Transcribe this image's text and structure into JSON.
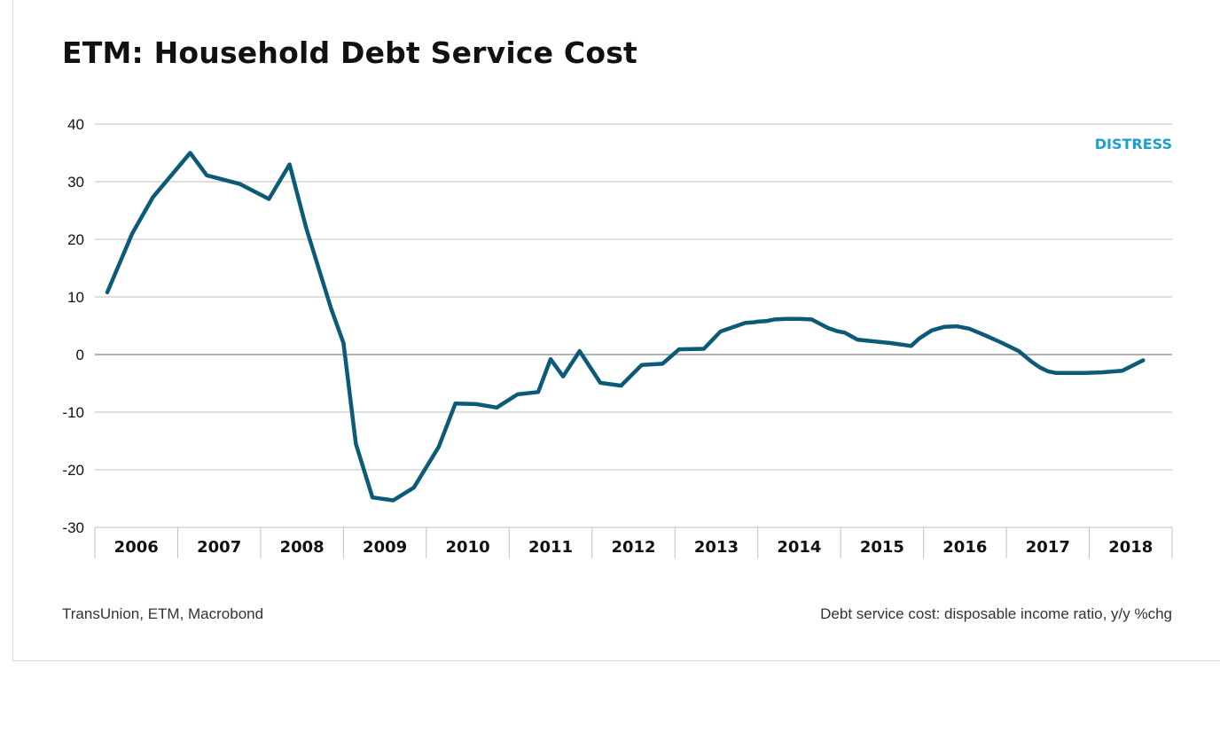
{
  "title": "ETM: Household Debt Service Cost",
  "source": "TransUnion, ETM, Macrobond",
  "note": "Debt service cost: disposable income ratio, y/y %chg",
  "colors": {
    "line": "#0b5a78",
    "annotation": "#1aa0cf",
    "grid": "#bfbfbf",
    "text": "#111111"
  },
  "chart_data": {
    "type": "line",
    "title": "ETM: Household Debt Service Cost",
    "xlabel": "",
    "ylabel": "",
    "ylim": [
      -30,
      40
    ],
    "yticks": [
      40,
      30,
      20,
      10,
      0,
      -10,
      -20,
      -30
    ],
    "xlim": [
      2006,
      2019
    ],
    "categories": [
      "2006",
      "2007",
      "2008",
      "2009",
      "2010",
      "2011",
      "2012",
      "2013",
      "2014",
      "2015",
      "2016",
      "2017",
      "2018"
    ],
    "grid": true,
    "annotation": "DISTRESS",
    "series": [
      {
        "x": [
          2006.15,
          2006.45,
          2006.7,
          2007.15,
          2007.35,
          2007.75,
          2008.1,
          2008.35,
          2008.55,
          2008.85,
          2009.0,
          2009.15,
          2009.35,
          2009.6,
          2009.85,
          2010.15,
          2010.35,
          2010.6,
          2010.85,
          2011.1,
          2011.35,
          2011.5,
          2011.65,
          2011.85,
          2012.1,
          2012.35,
          2012.6,
          2012.85,
          2013.05,
          2013.35,
          2013.55,
          2013.85,
          2013.95,
          2014.0,
          2014.1,
          2014.2,
          2014.35,
          2014.5,
          2014.65,
          2014.85,
          2014.95,
          2015.05,
          2015.15,
          2015.2,
          2015.4,
          2015.6,
          2015.85,
          2015.95,
          2016.1,
          2016.25,
          2016.4,
          2016.55,
          2016.75,
          2016.95,
          2017.15,
          2017.3,
          2017.4,
          2017.5,
          2017.6,
          2017.8,
          2017.95,
          2018.15,
          2018.4,
          2018.65
        ],
        "values": [
          10.8,
          21,
          27.3,
          35,
          31.1,
          29.6,
          27,
          33,
          22,
          8,
          2,
          -15.5,
          -24.8,
          -25.3,
          -23.1,
          -16,
          -8.5,
          -8.6,
          -9.2,
          -6.9,
          -6.5,
          -0.8,
          -3.8,
          0.6,
          -4.9,
          -5.4,
          -1.8,
          -1.6,
          0.9,
          1,
          4,
          5.5,
          5.6,
          5.7,
          5.8,
          6.1,
          6.2,
          6.2,
          6.1,
          4.6,
          4.1,
          3.8,
          3.0,
          2.6,
          2.3,
          2.0,
          1.5,
          2.8,
          4.2,
          4.8,
          4.9,
          4.5,
          3.3,
          2.0,
          0.6,
          -1.2,
          -2.2,
          -2.9,
          -3.2,
          -3.2,
          -3.2,
          -3.1,
          -2.8,
          -1.0
        ]
      }
    ]
  }
}
